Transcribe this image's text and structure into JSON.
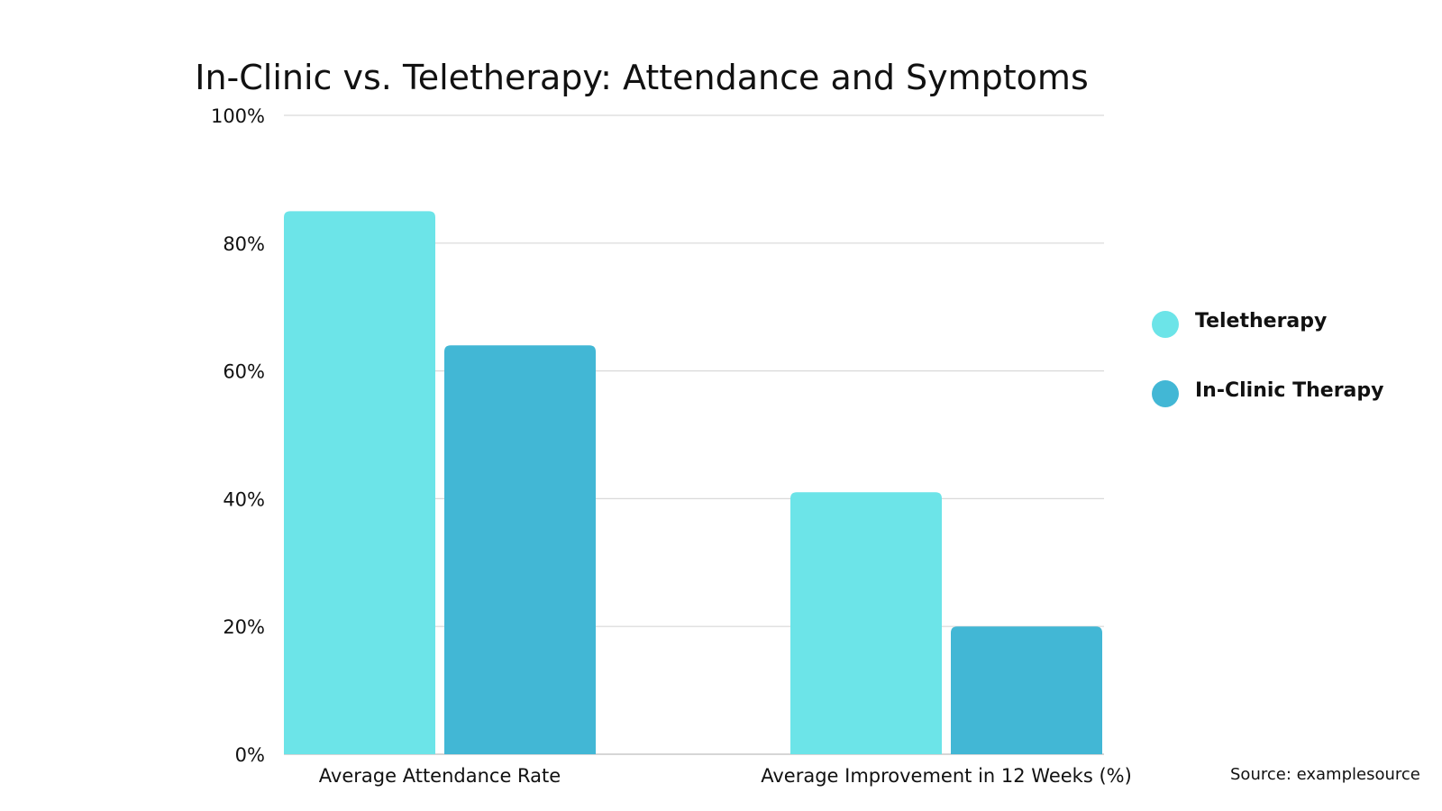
{
  "chart_data": {
    "type": "bar",
    "title": "In-Clinic vs. Teletherapy: Attendance and Symptoms",
    "categories": [
      "Average Attendance Rate",
      "Average Improvement in 12 Weeks (%)"
    ],
    "series": [
      {
        "name": "Teletherapy",
        "values": [
          85,
          41
        ],
        "color": "#6ce4e8"
      },
      {
        "name": "In-Clinic Therapy",
        "values": [
          64,
          20
        ],
        "color": "#42b7d5"
      }
    ],
    "ylim": [
      0,
      100
    ],
    "yticks": [
      0,
      20,
      40,
      60,
      80,
      100
    ],
    "ytick_labels": [
      "0%",
      "20%",
      "40%",
      "60%",
      "80%",
      "100%"
    ],
    "xlabel": "",
    "ylabel": "",
    "grid": true,
    "legend_position": "right",
    "source": "Source: examplesource"
  }
}
